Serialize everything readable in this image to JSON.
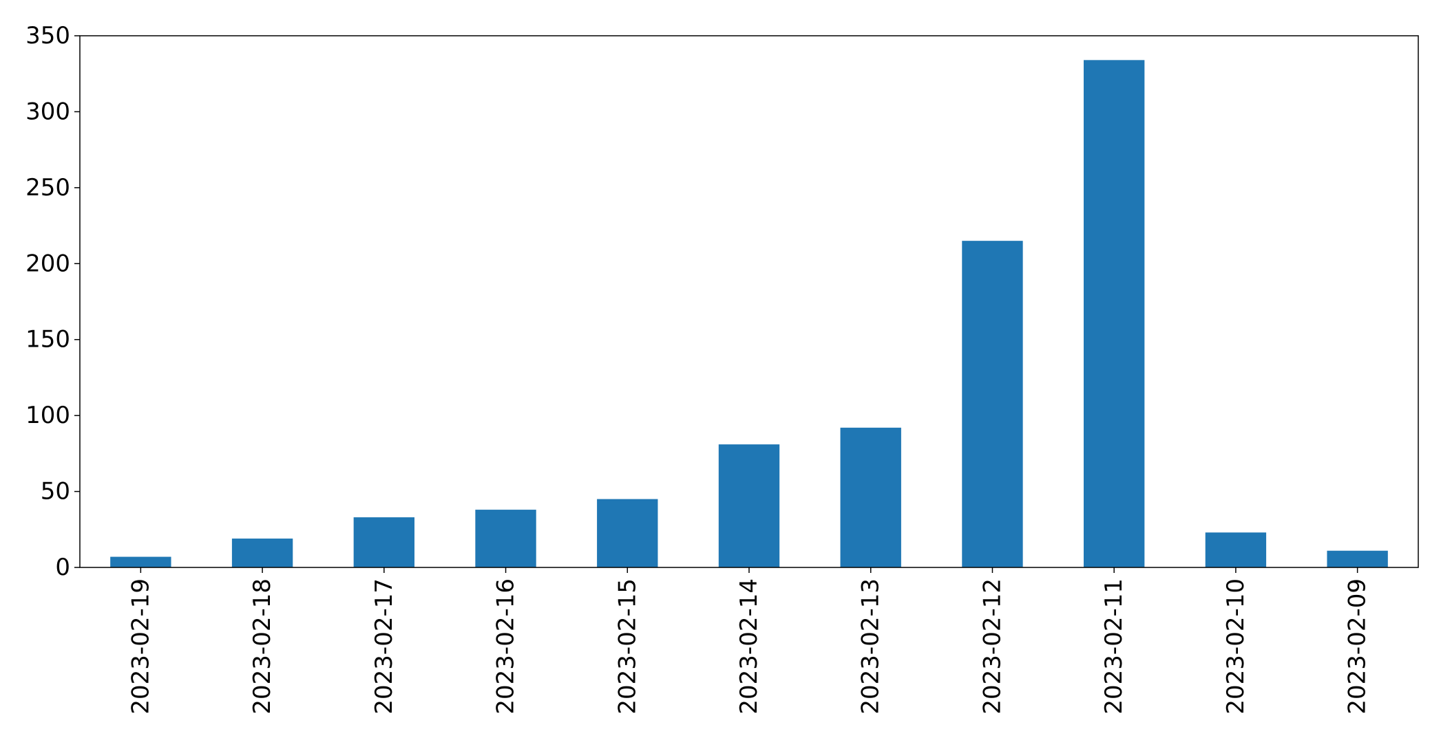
{
  "chart_data": {
    "type": "bar",
    "title": "",
    "xlabel": "",
    "ylabel": "",
    "categories": [
      "2023-02-19",
      "2023-02-18",
      "2023-02-17",
      "2023-02-16",
      "2023-02-15",
      "2023-02-14",
      "2023-02-13",
      "2023-02-12",
      "2023-02-11",
      "2023-02-10",
      "2023-02-09"
    ],
    "values": [
      7,
      19,
      33,
      38,
      45,
      81,
      92,
      215,
      334,
      23,
      11
    ],
    "ylim": [
      0,
      350
    ],
    "yticks": [
      0,
      50,
      100,
      150,
      200,
      250,
      300,
      350
    ],
    "bar_color": "#1f77b4",
    "grid": false,
    "legend": "none"
  }
}
